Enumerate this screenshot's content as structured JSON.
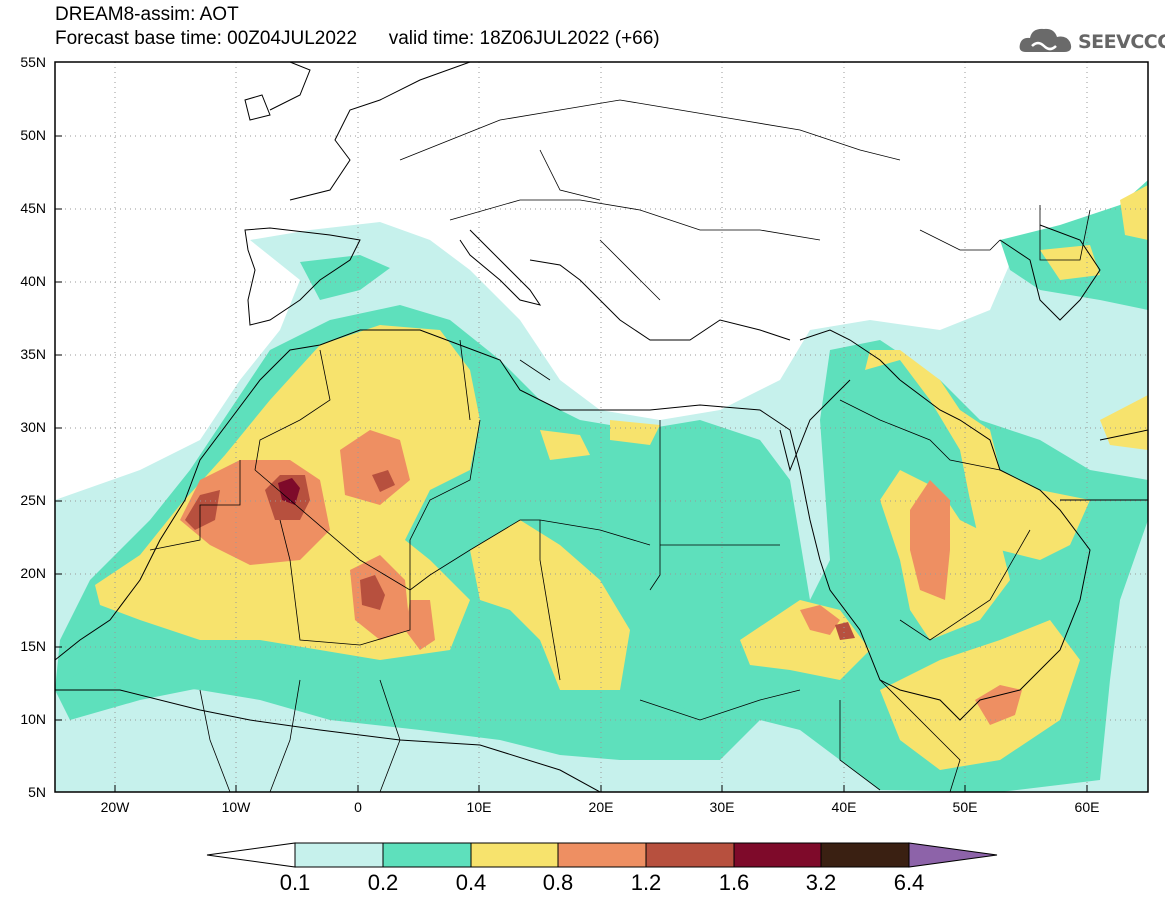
{
  "title": {
    "line1": "DREAM8-assim: AOT",
    "line2": "Forecast base time: 00Z04JUL2022      valid time: 18Z06JUL2022 (+66)"
  },
  "logo": {
    "text": "SEEVCCC",
    "icon": "cloud-logo-icon"
  },
  "map": {
    "lat_ticks": [
      "55N",
      "50N",
      "45N",
      "40N",
      "35N",
      "30N",
      "25N",
      "20N",
      "15N",
      "10N",
      "5N"
    ],
    "lon_ticks": [
      "20W",
      "10W",
      "0",
      "10E",
      "20E",
      "30E",
      "40E",
      "50E",
      "60E"
    ]
  },
  "colorbar": {
    "labels": [
      "0.1",
      "0.2",
      "0.4",
      "0.8",
      "1.2",
      "1.6",
      "3.2",
      "6.4"
    ],
    "colors": [
      "#ffffff",
      "#c6f1ec",
      "#5ee0bc",
      "#f7e36d",
      "#ee8f62",
      "#b7503e",
      "#7e0a2a",
      "#3a2012",
      "#8d63a9"
    ]
  }
}
